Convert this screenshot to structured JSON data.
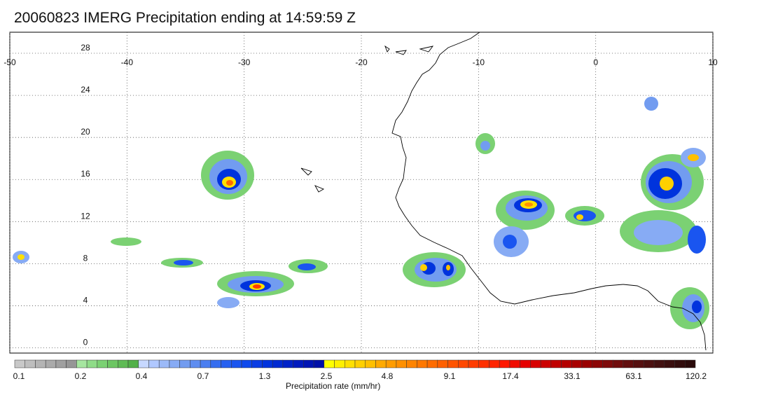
{
  "title": "20060823 IMERG Precipitation ending at 14:59:59 Z",
  "map": {
    "lon_range": [
      -50,
      10
    ],
    "lat_range": [
      -0.5,
      30
    ],
    "lon_ticks": [
      -50,
      -40,
      -30,
      -20,
      -10,
      0,
      10
    ],
    "lon_tick_labels": [
      "-50",
      "-40",
      "-30",
      "-20",
      "-10",
      "0",
      "10"
    ],
    "lat_ticks": [
      0,
      4,
      8,
      12,
      16,
      20,
      24,
      28
    ],
    "lat_tick_labels": [
      "0",
      "4",
      "8",
      "12",
      "16",
      "20",
      "24",
      "28"
    ],
    "grid": "dotted"
  },
  "colorbar": {
    "label": "Precipitation rate (mm/hr)",
    "tick_labels": [
      "0.1",
      "0.2",
      "0.4",
      "0.7",
      "1.3",
      "2.5",
      "4.8",
      "9.1",
      "17.4",
      "33.1",
      "63.1",
      "120.2"
    ],
    "colors": [
      "#c8c8c8",
      "#bebebe",
      "#b4b4b4",
      "#aaaaaa",
      "#a0a0a0",
      "#969696",
      "#a6e6a0",
      "#8fdc88",
      "#7bd173",
      "#6cc662",
      "#5fbb55",
      "#52b049",
      "#c7d8ff",
      "#b0c8ff",
      "#9cbaf8",
      "#87abf4",
      "#729cf0",
      "#5e8df0",
      "#4a7ef0",
      "#366ef0",
      "#2660f0",
      "#1a55f0",
      "#0f49ec",
      "#0a3de4",
      "#0033dd",
      "#002ad2",
      "#0022c8",
      "#001abe",
      "#0014b4",
      "#0010a8",
      "#ffff00",
      "#fff000",
      "#ffe000",
      "#ffd000",
      "#ffc000",
      "#ffaa00",
      "#ff9c00",
      "#ff9000",
      "#ff8400",
      "#ff7800",
      "#ff6c00",
      "#ff6000",
      "#ff5400",
      "#ff4800",
      "#ff3c00",
      "#ff3000",
      "#ff2400",
      "#ff1800",
      "#f00c00",
      "#e60000",
      "#d80000",
      "#cc0000",
      "#c00000",
      "#b40000",
      "#a80000",
      "#9a0000",
      "#8c0606",
      "#7e0a0a",
      "#700c0c",
      "#620e0e",
      "#561010",
      "#4c1010",
      "#421010",
      "#3a0e0e",
      "#320c0c",
      "#2a0a0a"
    ]
  }
}
